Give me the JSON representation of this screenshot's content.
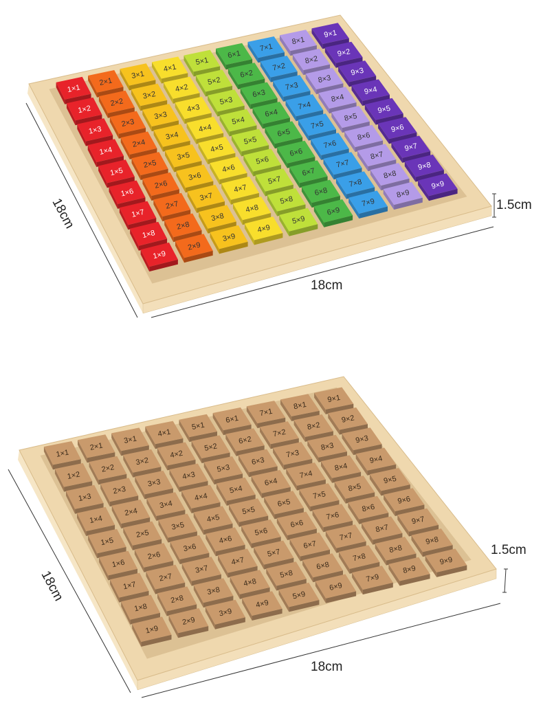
{
  "tile_labels": [
    [
      "1×1",
      "2×1",
      "3×1",
      "4×1",
      "5×1",
      "6×1",
      "7×1",
      "8×1",
      "9×1"
    ],
    [
      "1×2",
      "2×2",
      "3×2",
      "4×2",
      "5×2",
      "6×2",
      "7×2",
      "8×2",
      "9×2"
    ],
    [
      "1×3",
      "2×3",
      "3×3",
      "4×3",
      "5×3",
      "6×3",
      "7×3",
      "8×3",
      "9×3"
    ],
    [
      "1×4",
      "2×4",
      "3×4",
      "4×4",
      "5×4",
      "6×4",
      "7×4",
      "8×4",
      "9×4"
    ],
    [
      "1×5",
      "2×5",
      "3×5",
      "4×5",
      "5×5",
      "6×5",
      "7×5",
      "8×5",
      "9×5"
    ],
    [
      "1×6",
      "2×6",
      "3×6",
      "4×6",
      "5×6",
      "6×6",
      "7×6",
      "8×6",
      "9×6"
    ],
    [
      "1×7",
      "2×7",
      "3×7",
      "4×7",
      "5×7",
      "6×7",
      "7×7",
      "8×7",
      "9×7"
    ],
    [
      "1×8",
      "2×8",
      "3×8",
      "4×8",
      "5×8",
      "6×8",
      "7×8",
      "8×8",
      "9×8"
    ],
    [
      "1×9",
      "2×9",
      "3×9",
      "4×9",
      "5×9",
      "6×9",
      "7×9",
      "8×9",
      "9×9"
    ]
  ],
  "colored_board": {
    "column_colors": [
      "#e8232a",
      "#f36a1c",
      "#f7c21e",
      "#f8de2c",
      "#bfe03a",
      "#4cb848",
      "#3a9fe8",
      "#b49be8",
      "#6a35b8"
    ],
    "width_label": "18cm",
    "depth_label": "18cm",
    "height_label": "1.5cm"
  },
  "wooden_board": {
    "tile_color": "#c99a6c",
    "width_label": "18cm",
    "depth_label": "18cm",
    "height_label": "1.5cm"
  },
  "frame_color": "#efd8ae"
}
